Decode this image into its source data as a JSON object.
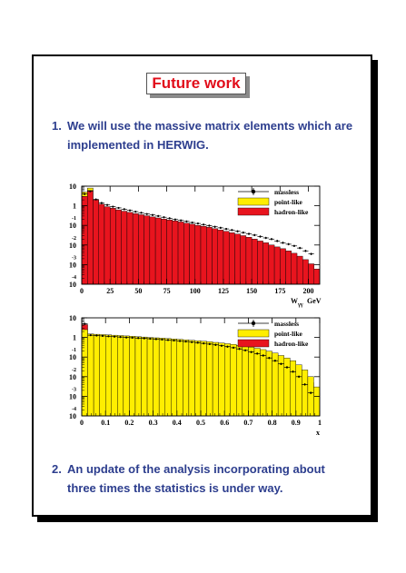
{
  "slide": {
    "title": "Future work",
    "items": [
      {
        "number": "1.",
        "text": "We will use the massive matrix elements which are implemented in HERWIG."
      },
      {
        "number": "2.",
        "text": "An update of the analysis incorporating about three times the statistics is under way."
      }
    ]
  },
  "colors": {
    "title": "#e10d1a",
    "text": "#2d3e8e",
    "point_like": "#ffee00",
    "hadron_like": "#e8141e"
  },
  "chart_data": [
    {
      "type": "bar",
      "x_label": "W",
      "x_label_sub": "γγ",
      "x_unit": "GeV",
      "x_ticks": [
        "0",
        "25",
        "50",
        "75",
        "100",
        "125",
        "150",
        "175",
        "200"
      ],
      "xlim": [
        0,
        210
      ],
      "y_scale": "log",
      "y_ticks": [
        {
          "base": "10",
          "exp": ""
        },
        {
          "base": "1",
          "exp": ""
        },
        {
          "base": "10",
          "exp": "-1"
        },
        {
          "base": "10",
          "exp": "-2"
        },
        {
          "base": "10",
          "exp": "-3"
        },
        {
          "base": "10",
          "exp": "-4"
        }
      ],
      "ylim": [
        0.0001,
        10
      ],
      "legend": [
        "massless",
        "point-like",
        "hadron-like"
      ],
      "legend_position": "top-right",
      "bin_edges": [
        0,
        5,
        10,
        15,
        20,
        25,
        30,
        35,
        40,
        45,
        50,
        55,
        60,
        65,
        70,
        75,
        80,
        85,
        90,
        95,
        100,
        105,
        110,
        115,
        120,
        125,
        130,
        135,
        140,
        145,
        150,
        155,
        160,
        165,
        170,
        175,
        180,
        185,
        190,
        195,
        200,
        205,
        210
      ],
      "series": [
        {
          "name": "point-like",
          "values": [
            5,
            8,
            1.8,
            0.8,
            0.4,
            0.2,
            0.12,
            0.07,
            0.045,
            0.03,
            0.02,
            0.014,
            0.01,
            0.007,
            0.005,
            0.0035,
            0.0027,
            0.002,
            0.0015,
            0.0012,
            0.001,
            0.0008,
            0.00065,
            0.00055,
            0.00045,
            0.00038,
            0.0003,
            0.00025,
            0.0002,
            0.00015,
            0.00012,
            0.0001,
            0.0001,
            0.0001,
            0.0001,
            0.0001,
            0.0001,
            0.0001,
            0.0001,
            0.0001,
            0.0001,
            0.0001
          ]
        },
        {
          "name": "hadron-like",
          "values": [
            3,
            6,
            2,
            1.2,
            0.9,
            0.75,
            0.62,
            0.53,
            0.46,
            0.4,
            0.35,
            0.31,
            0.27,
            0.24,
            0.21,
            0.19,
            0.17,
            0.15,
            0.13,
            0.115,
            0.1,
            0.09,
            0.08,
            0.068,
            0.058,
            0.05,
            0.042,
            0.036,
            0.03,
            0.025,
            0.02,
            0.016,
            0.013,
            0.01,
            0.008,
            0.0065,
            0.005,
            0.0038,
            0.0027,
            0.0018,
            0.0011,
            0.0006
          ]
        },
        {
          "name": "massless",
          "points": [
            [
              2.5,
              4
            ],
            [
              7.5,
              5.5
            ],
            [
              12.5,
              2.1
            ],
            [
              17.5,
              1.4
            ],
            [
              22.5,
              1.1
            ],
            [
              27.5,
              0.9
            ],
            [
              32.5,
              0.78
            ],
            [
              37.5,
              0.67
            ],
            [
              42.5,
              0.58
            ],
            [
              47.5,
              0.5
            ],
            [
              52.5,
              0.44
            ],
            [
              57.5,
              0.38
            ],
            [
              62.5,
              0.34
            ],
            [
              67.5,
              0.3
            ],
            [
              72.5,
              0.26
            ],
            [
              77.5,
              0.23
            ],
            [
              82.5,
              0.2
            ],
            [
              87.5,
              0.18
            ],
            [
              92.5,
              0.16
            ],
            [
              97.5,
              0.14
            ],
            [
              102.5,
              0.125
            ],
            [
              107.5,
              0.11
            ],
            [
              112.5,
              0.097
            ],
            [
              117.5,
              0.085
            ],
            [
              122.5,
              0.075
            ],
            [
              127.5,
              0.066
            ],
            [
              132.5,
              0.058
            ],
            [
              137.5,
              0.05
            ],
            [
              142.5,
              0.043
            ],
            [
              147.5,
              0.037
            ],
            [
              152.5,
              0.032
            ],
            [
              157.5,
              0.027
            ],
            [
              162.5,
              0.023
            ],
            [
              167.5,
              0.02
            ],
            [
              172.5,
              0.016
            ],
            [
              177.5,
              0.013
            ],
            [
              182.5,
              0.011
            ],
            [
              187.5,
              0.009
            ],
            [
              192.5,
              0.007
            ],
            [
              197.5,
              0.005
            ],
            [
              202.5,
              0.0035
            ]
          ]
        }
      ]
    },
    {
      "type": "bar",
      "x_label": "x",
      "x_ticks": [
        "0",
        "0.1",
        "0.2",
        "0.3",
        "0.4",
        "0.5",
        "0.6",
        "0.7",
        "0.8",
        "0.9",
        "1"
      ],
      "xlim": [
        0,
        1
      ],
      "y_scale": "log",
      "y_ticks": [
        {
          "base": "10",
          "exp": ""
        },
        {
          "base": "1",
          "exp": ""
        },
        {
          "base": "10",
          "exp": "-1"
        },
        {
          "base": "10",
          "exp": "-2"
        },
        {
          "base": "10",
          "exp": "-3"
        },
        {
          "base": "10",
          "exp": "-4"
        }
      ],
      "ylim": [
        0.0001,
        10
      ],
      "legend": [
        "massless",
        "point-like",
        "hadron-like"
      ],
      "legend_position": "top-right",
      "bin_edges": [
        0,
        0.025,
        0.05,
        0.075,
        0.1,
        0.125,
        0.15,
        0.175,
        0.2,
        0.225,
        0.25,
        0.275,
        0.3,
        0.325,
        0.35,
        0.375,
        0.4,
        0.425,
        0.45,
        0.475,
        0.5,
        0.525,
        0.55,
        0.575,
        0.6,
        0.625,
        0.65,
        0.675,
        0.7,
        0.725,
        0.75,
        0.775,
        0.8,
        0.825,
        0.85,
        0.875,
        0.9,
        0.925,
        0.95,
        0.975,
        1
      ],
      "series": [
        {
          "name": "hadron-like",
          "values": [
            4.5,
            1.2,
            1.3,
            1.25,
            1.2,
            1.15,
            1.1,
            1.05,
            1.0,
            0.96,
            0.92,
            0.88,
            0.84,
            0.8,
            0.76,
            0.72,
            0.68,
            0.64,
            0.6,
            0.56,
            0.52,
            0.48,
            0.44,
            0.4,
            0.36,
            0.32,
            0.28,
            0.24,
            0.2,
            0.16,
            0.13,
            0.1,
            0.075,
            0.055,
            0.04,
            0.028,
            0.018,
            0.01,
            0.005,
            0.0015
          ]
        },
        {
          "name": "point-like",
          "values": [
            2.5,
            1.5,
            1.45,
            1.4,
            1.35,
            1.3,
            1.25,
            1.2,
            1.15,
            1.1,
            1.05,
            1.0,
            0.96,
            0.92,
            0.88,
            0.84,
            0.8,
            0.76,
            0.72,
            0.68,
            0.64,
            0.6,
            0.56,
            0.52,
            0.48,
            0.44,
            0.4,
            0.36,
            0.32,
            0.28,
            0.24,
            0.2,
            0.16,
            0.12,
            0.09,
            0.065,
            0.04,
            0.022,
            0.01,
            0.003
          ]
        },
        {
          "name": "massless",
          "points": [
            [
              0.0125,
              5
            ],
            [
              0.0375,
              1.3
            ],
            [
              0.0625,
              1.25
            ],
            [
              0.0875,
              1.2
            ],
            [
              0.1125,
              1.15
            ],
            [
              0.1375,
              1.1
            ],
            [
              0.1625,
              1.05
            ],
            [
              0.1875,
              1.0
            ],
            [
              0.2125,
              0.97
            ],
            [
              0.2375,
              0.93
            ],
            [
              0.2625,
              0.9
            ],
            [
              0.2875,
              0.86
            ],
            [
              0.3125,
              0.82
            ],
            [
              0.3375,
              0.78
            ],
            [
              0.3625,
              0.74
            ],
            [
              0.3875,
              0.7
            ],
            [
              0.4125,
              0.66
            ],
            [
              0.4375,
              0.62
            ],
            [
              0.4625,
              0.58
            ],
            [
              0.4875,
              0.54
            ],
            [
              0.5125,
              0.5
            ],
            [
              0.5375,
              0.46
            ],
            [
              0.5625,
              0.42
            ],
            [
              0.5875,
              0.38
            ],
            [
              0.6125,
              0.34
            ],
            [
              0.6375,
              0.3
            ],
            [
              0.6625,
              0.26
            ],
            [
              0.6875,
              0.22
            ],
            [
              0.7125,
              0.18
            ],
            [
              0.7375,
              0.15
            ],
            [
              0.7625,
              0.12
            ],
            [
              0.7875,
              0.09
            ],
            [
              0.8125,
              0.065
            ],
            [
              0.8375,
              0.045
            ],
            [
              0.8625,
              0.03
            ],
            [
              0.8875,
              0.018
            ],
            [
              0.9125,
              0.01
            ],
            [
              0.9375,
              0.004
            ],
            [
              0.9625,
              0.0015
            ]
          ]
        }
      ]
    }
  ]
}
